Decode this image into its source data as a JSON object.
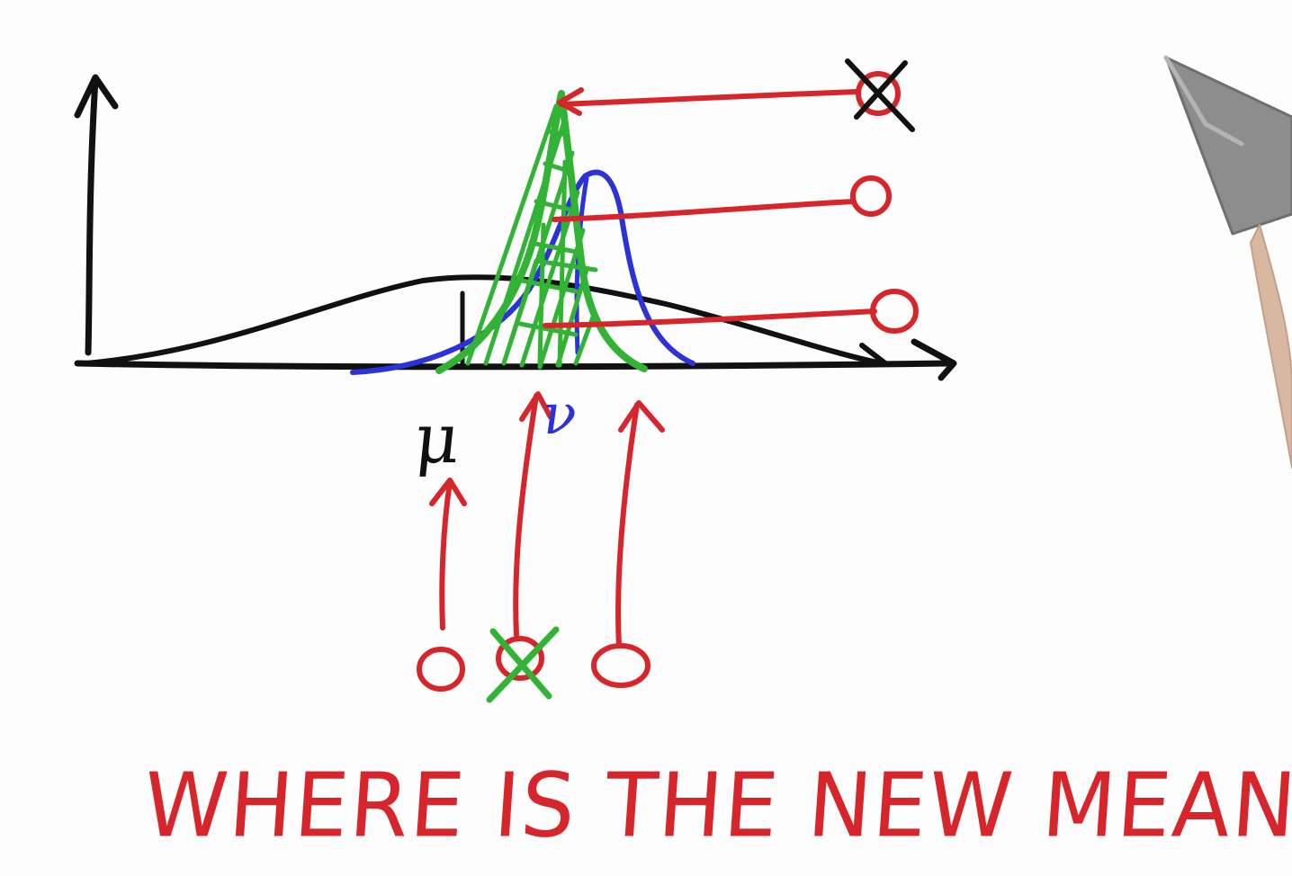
{
  "labels": {
    "mu": "μ",
    "nu": "ν",
    "question": "WHERE IS THE NEW MEAN"
  },
  "colors": {
    "ink": "#111111",
    "prior": "#111111",
    "posterior": "#2a32d8",
    "highlight": "#33b335",
    "arrows": "#d7262b",
    "pen_body": "#8d8d8d",
    "hand": "#d9b8a2"
  },
  "legend_items": [
    "prior-curve",
    "new-curve",
    "measurement-curve"
  ],
  "options": {
    "answer_circles": [
      "option-circle-top",
      "option-circle-middle",
      "option-circle-bottom"
    ],
    "axis_choices": [
      "axis-choice-left",
      "axis-choice-middle",
      "axis-choice-right"
    ],
    "crossed_out": [
      "option-circle-top",
      "axis-choice-middle"
    ]
  },
  "icons": [
    "pen-icon",
    "cross-mark-icon"
  ]
}
